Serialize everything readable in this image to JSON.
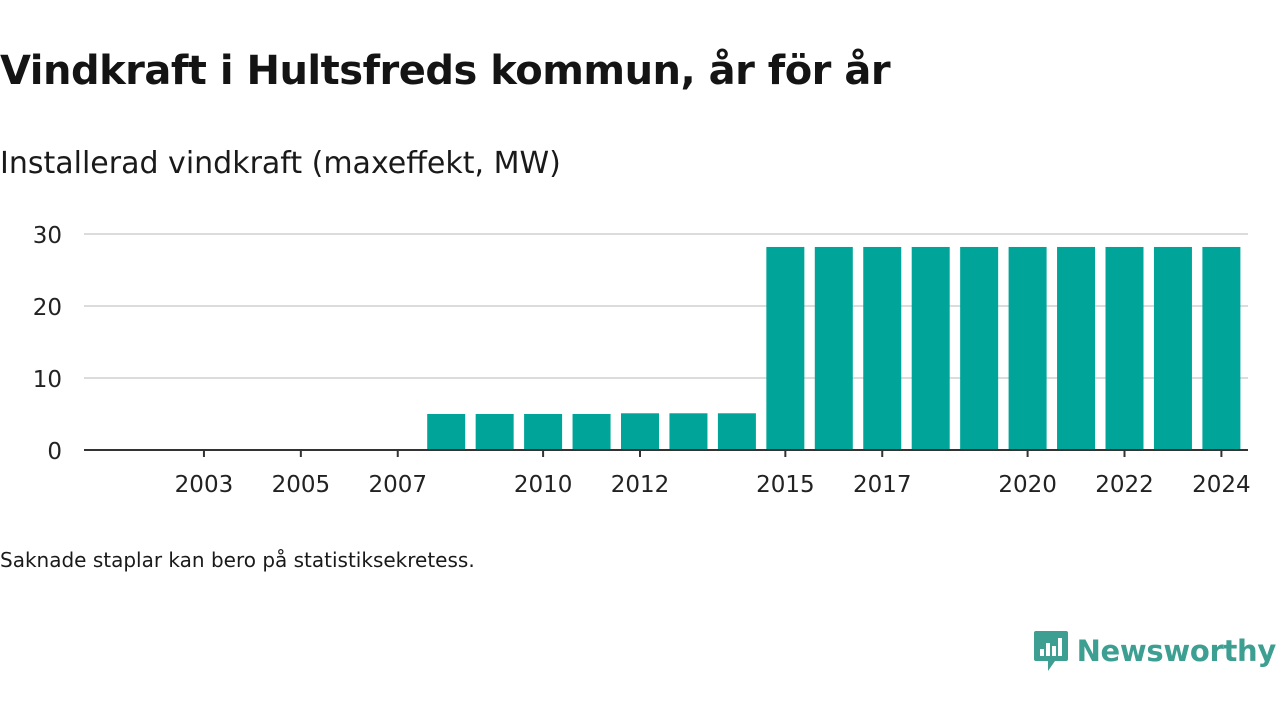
{
  "title": "Vindkraft i Hultsfreds kommun, år för år",
  "subtitle": "Installerad vindkraft (maxeffekt, MW)",
  "footnote": "Saknade staplar kan bero på statistiksekretess.",
  "brand": {
    "name": "Newsworthy",
    "icon": "newsworthy-chart-bubble-icon",
    "color": "#3d9e92"
  },
  "chart_data": {
    "type": "bar",
    "categories": [
      "2002",
      "2003",
      "2004",
      "2005",
      "2006",
      "2007",
      "2008",
      "2009",
      "2010",
      "2011",
      "2012",
      "2013",
      "2014",
      "2015",
      "2016",
      "2017",
      "2018",
      "2019",
      "2020",
      "2021",
      "2022",
      "2023",
      "2024"
    ],
    "values": [
      0,
      0,
      0,
      0,
      0,
      0,
      5,
      5,
      5,
      5,
      5.1,
      5.1,
      5.1,
      28.2,
      28.2,
      28.2,
      28.2,
      28.2,
      28.2,
      28.2,
      28.2,
      28.2,
      28.2
    ],
    "x_tick_labels": [
      "2003",
      "2005",
      "2007",
      "2010",
      "2012",
      "2015",
      "2017",
      "2020",
      "2022",
      "2024"
    ],
    "y_ticks": [
      0,
      10,
      20,
      30
    ],
    "ylim": [
      0,
      30
    ],
    "grid": true,
    "bar_color": "#00a499",
    "grid_color": "#dcdcdc",
    "axis_color": "#333333"
  }
}
